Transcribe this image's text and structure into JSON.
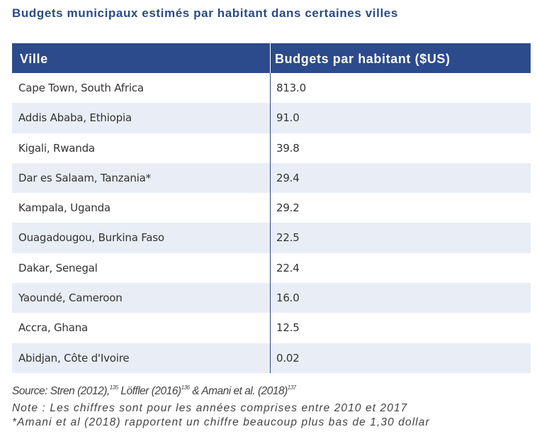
{
  "title": "Budgets municipaux estimés par habitant dans certaines villes",
  "table": {
    "headers": [
      "Ville",
      "Budgets par habitant ($US)"
    ],
    "rows": [
      {
        "city": "Cape Town, South Africa",
        "budget": "813.0"
      },
      {
        "city": "Addis Ababa, Ethiopia",
        "budget": "91.0"
      },
      {
        "city": "Kigali, Rwanda",
        "budget": "39.8"
      },
      {
        "city": "Dar es Salaam, Tanzania*",
        "budget": "29.4"
      },
      {
        "city": "Kampala, Uganda",
        "budget": "29.2"
      },
      {
        "city": "Ouagadougou, Burkina Faso",
        "budget": "22.5"
      },
      {
        "city": "Dakar, Senegal",
        "budget": "22.4"
      },
      {
        "city": "Yaoundé, Cameroon",
        "budget": "16.0"
      },
      {
        "city": "Accra, Ghana",
        "budget": "12.5"
      },
      {
        "city": "Abidjan, Côte d'Ivoire",
        "budget": "0.02"
      }
    ]
  },
  "source": {
    "prefix": "Source: Stren (2012),",
    "ref1": "135",
    "mid": " Löffler (2016)",
    "ref2": "136",
    "mid2": " & Amani et al. (2018)",
    "ref3": "137"
  },
  "notes": [
    "Note : Les chiffres sont pour les années comprises entre 2010 et 2017",
    "*Amani et al (2018) rapportent un chiffre beaucoup plus bas de 1,30 dollar"
  ],
  "colors": {
    "header_bg": "#2c4b8c",
    "title": "#2a4a8a",
    "alt_row": "#e9edf5"
  }
}
